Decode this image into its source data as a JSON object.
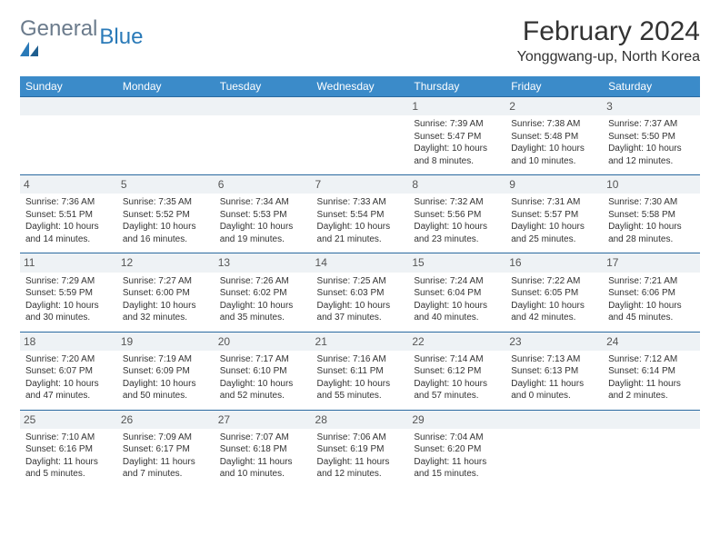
{
  "logo": {
    "textGray": "General",
    "textBlue": "Blue"
  },
  "title": "February 2024",
  "location": "Yonggwang-up, North Korea",
  "colors": {
    "headerBg": "#3b8bc9",
    "rowBorder": "#2a6aa0",
    "dayNumBg": "#eef2f5",
    "text": "#333333",
    "logoGray": "#6b7b8c",
    "logoBlue": "#2a7ab8"
  },
  "dayNames": [
    "Sunday",
    "Monday",
    "Tuesday",
    "Wednesday",
    "Thursday",
    "Friday",
    "Saturday"
  ],
  "weeks": [
    [
      {
        "n": "",
        "sunrise": "",
        "sunset": "",
        "daylight": ""
      },
      {
        "n": "",
        "sunrise": "",
        "sunset": "",
        "daylight": ""
      },
      {
        "n": "",
        "sunrise": "",
        "sunset": "",
        "daylight": ""
      },
      {
        "n": "",
        "sunrise": "",
        "sunset": "",
        "daylight": ""
      },
      {
        "n": "1",
        "sunrise": "Sunrise: 7:39 AM",
        "sunset": "Sunset: 5:47 PM",
        "daylight": "Daylight: 10 hours and 8 minutes."
      },
      {
        "n": "2",
        "sunrise": "Sunrise: 7:38 AM",
        "sunset": "Sunset: 5:48 PM",
        "daylight": "Daylight: 10 hours and 10 minutes."
      },
      {
        "n": "3",
        "sunrise": "Sunrise: 7:37 AM",
        "sunset": "Sunset: 5:50 PM",
        "daylight": "Daylight: 10 hours and 12 minutes."
      }
    ],
    [
      {
        "n": "4",
        "sunrise": "Sunrise: 7:36 AM",
        "sunset": "Sunset: 5:51 PM",
        "daylight": "Daylight: 10 hours and 14 minutes."
      },
      {
        "n": "5",
        "sunrise": "Sunrise: 7:35 AM",
        "sunset": "Sunset: 5:52 PM",
        "daylight": "Daylight: 10 hours and 16 minutes."
      },
      {
        "n": "6",
        "sunrise": "Sunrise: 7:34 AM",
        "sunset": "Sunset: 5:53 PM",
        "daylight": "Daylight: 10 hours and 19 minutes."
      },
      {
        "n": "7",
        "sunrise": "Sunrise: 7:33 AM",
        "sunset": "Sunset: 5:54 PM",
        "daylight": "Daylight: 10 hours and 21 minutes."
      },
      {
        "n": "8",
        "sunrise": "Sunrise: 7:32 AM",
        "sunset": "Sunset: 5:56 PM",
        "daylight": "Daylight: 10 hours and 23 minutes."
      },
      {
        "n": "9",
        "sunrise": "Sunrise: 7:31 AM",
        "sunset": "Sunset: 5:57 PM",
        "daylight": "Daylight: 10 hours and 25 minutes."
      },
      {
        "n": "10",
        "sunrise": "Sunrise: 7:30 AM",
        "sunset": "Sunset: 5:58 PM",
        "daylight": "Daylight: 10 hours and 28 minutes."
      }
    ],
    [
      {
        "n": "11",
        "sunrise": "Sunrise: 7:29 AM",
        "sunset": "Sunset: 5:59 PM",
        "daylight": "Daylight: 10 hours and 30 minutes."
      },
      {
        "n": "12",
        "sunrise": "Sunrise: 7:27 AM",
        "sunset": "Sunset: 6:00 PM",
        "daylight": "Daylight: 10 hours and 32 minutes."
      },
      {
        "n": "13",
        "sunrise": "Sunrise: 7:26 AM",
        "sunset": "Sunset: 6:02 PM",
        "daylight": "Daylight: 10 hours and 35 minutes."
      },
      {
        "n": "14",
        "sunrise": "Sunrise: 7:25 AM",
        "sunset": "Sunset: 6:03 PM",
        "daylight": "Daylight: 10 hours and 37 minutes."
      },
      {
        "n": "15",
        "sunrise": "Sunrise: 7:24 AM",
        "sunset": "Sunset: 6:04 PM",
        "daylight": "Daylight: 10 hours and 40 minutes."
      },
      {
        "n": "16",
        "sunrise": "Sunrise: 7:22 AM",
        "sunset": "Sunset: 6:05 PM",
        "daylight": "Daylight: 10 hours and 42 minutes."
      },
      {
        "n": "17",
        "sunrise": "Sunrise: 7:21 AM",
        "sunset": "Sunset: 6:06 PM",
        "daylight": "Daylight: 10 hours and 45 minutes."
      }
    ],
    [
      {
        "n": "18",
        "sunrise": "Sunrise: 7:20 AM",
        "sunset": "Sunset: 6:07 PM",
        "daylight": "Daylight: 10 hours and 47 minutes."
      },
      {
        "n": "19",
        "sunrise": "Sunrise: 7:19 AM",
        "sunset": "Sunset: 6:09 PM",
        "daylight": "Daylight: 10 hours and 50 minutes."
      },
      {
        "n": "20",
        "sunrise": "Sunrise: 7:17 AM",
        "sunset": "Sunset: 6:10 PM",
        "daylight": "Daylight: 10 hours and 52 minutes."
      },
      {
        "n": "21",
        "sunrise": "Sunrise: 7:16 AM",
        "sunset": "Sunset: 6:11 PM",
        "daylight": "Daylight: 10 hours and 55 minutes."
      },
      {
        "n": "22",
        "sunrise": "Sunrise: 7:14 AM",
        "sunset": "Sunset: 6:12 PM",
        "daylight": "Daylight: 10 hours and 57 minutes."
      },
      {
        "n": "23",
        "sunrise": "Sunrise: 7:13 AM",
        "sunset": "Sunset: 6:13 PM",
        "daylight": "Daylight: 11 hours and 0 minutes."
      },
      {
        "n": "24",
        "sunrise": "Sunrise: 7:12 AM",
        "sunset": "Sunset: 6:14 PM",
        "daylight": "Daylight: 11 hours and 2 minutes."
      }
    ],
    [
      {
        "n": "25",
        "sunrise": "Sunrise: 7:10 AM",
        "sunset": "Sunset: 6:16 PM",
        "daylight": "Daylight: 11 hours and 5 minutes."
      },
      {
        "n": "26",
        "sunrise": "Sunrise: 7:09 AM",
        "sunset": "Sunset: 6:17 PM",
        "daylight": "Daylight: 11 hours and 7 minutes."
      },
      {
        "n": "27",
        "sunrise": "Sunrise: 7:07 AM",
        "sunset": "Sunset: 6:18 PM",
        "daylight": "Daylight: 11 hours and 10 minutes."
      },
      {
        "n": "28",
        "sunrise": "Sunrise: 7:06 AM",
        "sunset": "Sunset: 6:19 PM",
        "daylight": "Daylight: 11 hours and 12 minutes."
      },
      {
        "n": "29",
        "sunrise": "Sunrise: 7:04 AM",
        "sunset": "Sunset: 6:20 PM",
        "daylight": "Daylight: 11 hours and 15 minutes."
      },
      {
        "n": "",
        "sunrise": "",
        "sunset": "",
        "daylight": ""
      },
      {
        "n": "",
        "sunrise": "",
        "sunset": "",
        "daylight": ""
      }
    ]
  ]
}
